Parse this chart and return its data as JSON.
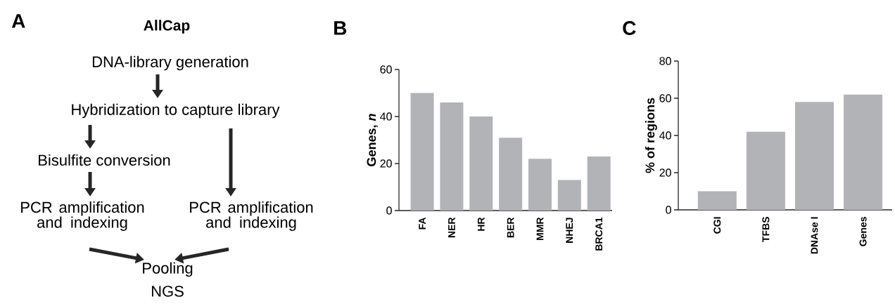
{
  "chart_data": [
    {
      "type": "other",
      "title": "A",
      "subtitle": "AllCap",
      "annotations": [
        "DNA-library generation",
        "Hybridization to capture library",
        "Bisulfite conversion",
        "PCR amplification and indexing",
        "PCR amplification and indexing",
        "Pooling",
        "NGS"
      ]
    },
    {
      "type": "bar",
      "title": "B",
      "ylabel": "Genes, *n*",
      "categories": [
        "FA",
        "NER",
        "HR",
        "BER",
        "MMR",
        "NHEJ",
        "BRCA1"
      ],
      "values": [
        50,
        46,
        40,
        31,
        22,
        13,
        23
      ],
      "color": "#b2b3b6",
      "ylim": [
        0,
        60
      ],
      "yticks": [
        0,
        20,
        40,
        60
      ]
    },
    {
      "type": "bar",
      "title": "C",
      "ylabel": "% of regions",
      "categories": [
        "CGI",
        "TFBS",
        "DNAse I",
        "Genes"
      ],
      "values": [
        10,
        42,
        58,
        62
      ],
      "color": "#b2b3b6",
      "ylim": [
        0,
        80
      ],
      "yticks": [
        0,
        20,
        40,
        60,
        80
      ]
    }
  ]
}
